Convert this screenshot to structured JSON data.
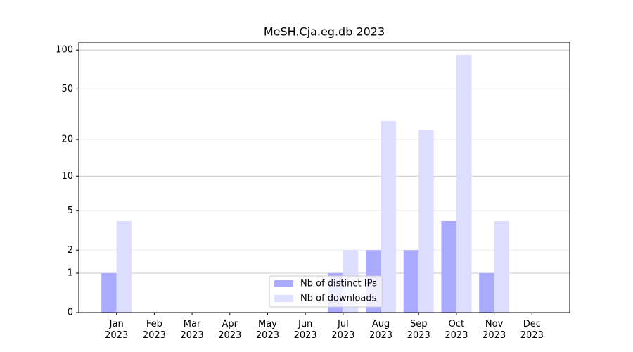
{
  "chart_data": {
    "type": "bar",
    "title": "MeSH.Cja.eg.db 2023",
    "categories": [
      "Jan\n2023",
      "Feb\n2023",
      "Mar\n2023",
      "Apr\n2023",
      "May\n2023",
      "Jun\n2023",
      "Jul\n2023",
      "Aug\n2023",
      "Sep\n2023",
      "Oct\n2023",
      "Nov\n2023",
      "Dec\n2023"
    ],
    "series": [
      {
        "name": "Nb of distinct IPs",
        "color": "#aaaaff",
        "values": [
          1,
          0,
          0,
          0,
          0,
          0,
          1,
          2,
          2,
          4,
          1,
          0
        ]
      },
      {
        "name": "Nb of downloads",
        "color": "#ddddff",
        "values": [
          4,
          0,
          0,
          0,
          0,
          0,
          2,
          28,
          24,
          92,
          4,
          0
        ]
      }
    ],
    "y_scale": "log1p",
    "ylim": [
      0,
      115
    ],
    "yticks": [
      0,
      1,
      2,
      5,
      10,
      20,
      50,
      100
    ],
    "grid": true,
    "legend": "lower center"
  }
}
